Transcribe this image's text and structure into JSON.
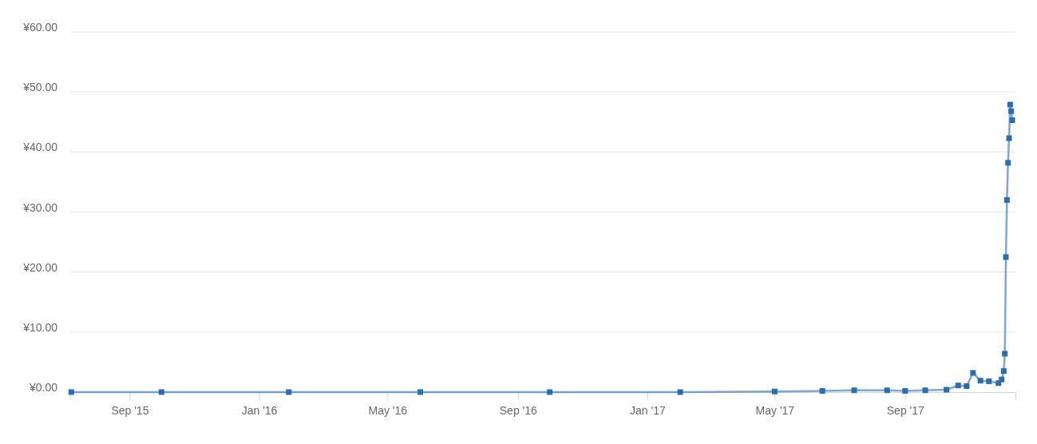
{
  "chart_data": {
    "type": "line",
    "x": [
      "2015-07-08",
      "2015-10-01",
      "2016-01-29",
      "2016-06-01",
      "2016-10-01",
      "2017-02-01",
      "2017-05-01",
      "2017-06-15",
      "2017-07-15",
      "2017-08-15",
      "2017-09-01",
      "2017-09-20",
      "2017-10-10",
      "2017-10-21",
      "2017-10-29",
      "2017-11-04",
      "2017-11-11",
      "2017-11-19",
      "2017-11-28",
      "2017-12-01",
      "2017-12-03",
      "2017-12-04",
      "2017-12-05",
      "2017-12-06",
      "2017-12-07",
      "2017-12-08",
      "2017-12-09",
      "2017-12-10",
      "2017-12-11"
    ],
    "series": [
      {
        "color": "#2a6db0",
        "values": [
          0,
          0,
          0,
          0,
          0,
          0,
          0.1,
          0.2,
          0.3,
          0.3,
          0.2,
          0.3,
          0.4,
          1.1,
          1.0,
          3.2,
          1.9,
          1.8,
          1.5,
          2.1,
          3.5,
          6.4,
          22.5,
          32,
          38.2,
          42.3,
          47.9,
          46.8,
          45.3
        ]
      }
    ],
    "xlim": [
      "2015-07-07",
      "2017-12-14"
    ],
    "xticks": [
      {
        "value": "2015-09-01",
        "label": "Sep '15"
      },
      {
        "value": "2016-01-01",
        "label": "Jan '16"
      },
      {
        "value": "2016-05-01",
        "label": "May '16"
      },
      {
        "value": "2016-09-01",
        "label": "Sep '16"
      },
      {
        "value": "2017-01-01",
        "label": "Jan '17"
      },
      {
        "value": "2017-05-01",
        "label": "May '17"
      },
      {
        "value": "2017-09-01",
        "label": "Sep '17"
      }
    ],
    "ylim": [
      0,
      60
    ],
    "yticks": [
      {
        "value": 0,
        "label": "¥0.00"
      },
      {
        "value": 10,
        "label": "¥10.00"
      },
      {
        "value": 20,
        "label": "¥20.00"
      },
      {
        "value": 30,
        "label": "¥30.00"
      },
      {
        "value": 40,
        "label": "¥40.00"
      },
      {
        "value": 50,
        "label": "¥50.00"
      },
      {
        "value": 60,
        "label": "¥60.00"
      }
    ],
    "grid": "y",
    "marker": "square",
    "line_style": "solid"
  }
}
